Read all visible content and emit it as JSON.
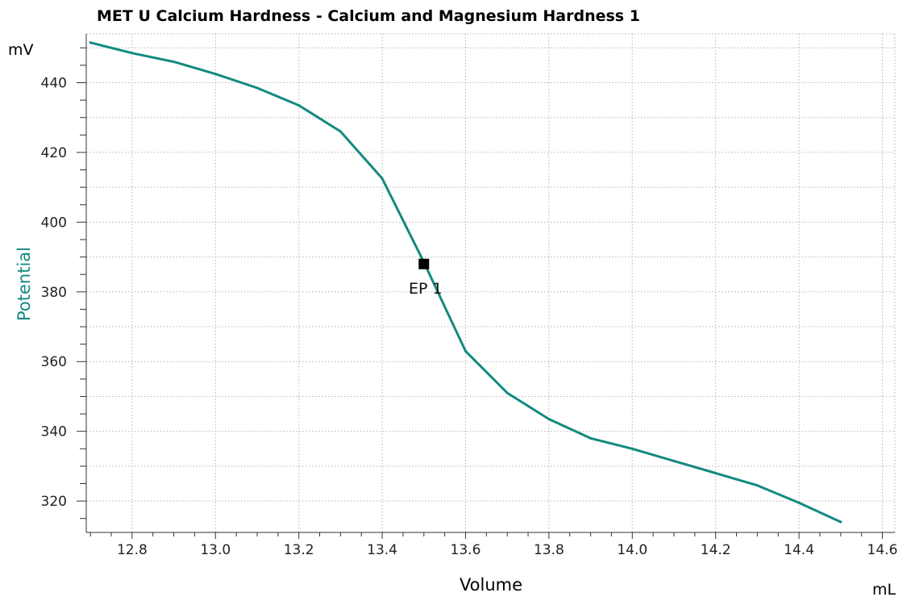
{
  "chart_data": {
    "type": "line",
    "title": "MET U Calcium Hardness - Calcium and Magnesium Hardness  1",
    "xlabel": "Volume",
    "xunit": "mL",
    "ylabel": "Potential",
    "yunit": "mV",
    "xlim": [
      12.69,
      14.63
    ],
    "ylim": [
      311,
      454
    ],
    "x_major_ticks": [
      12.8,
      13.0,
      13.2,
      13.4,
      13.6,
      13.8,
      14.0,
      14.2,
      14.4,
      14.6
    ],
    "x_tick_labels": [
      "12.8",
      "13.0",
      "13.2",
      "13.4",
      "13.6",
      "13.8",
      "14.0",
      "14.2",
      "14.4",
      "14.6"
    ],
    "y_major_ticks": [
      320,
      340,
      360,
      380,
      400,
      420,
      440
    ],
    "y_tick_labels": [
      "320",
      "340",
      "360",
      "380",
      "400",
      "420",
      "440"
    ],
    "grid": true,
    "line_color": "#138a80",
    "series": [
      {
        "x": [
          12.7,
          12.8,
          12.9,
          13.0,
          13.1,
          13.2,
          13.3,
          13.4,
          13.5,
          13.6,
          13.7,
          13.8,
          13.9,
          14.0,
          14.1,
          14.2,
          14.3,
          14.4,
          14.5
        ],
        "y": [
          451.5,
          448.5,
          446.0,
          442.5,
          438.5,
          433.5,
          426.0,
          412.5,
          388.5,
          363.0,
          351.0,
          343.5,
          338.0,
          335.0,
          331.5,
          328.0,
          324.5,
          319.5,
          314.0
        ]
      }
    ],
    "annotations": [
      {
        "label": "EP  1",
        "x": 13.5,
        "y": 388.0,
        "marker": "square",
        "color": "#000000"
      }
    ]
  }
}
